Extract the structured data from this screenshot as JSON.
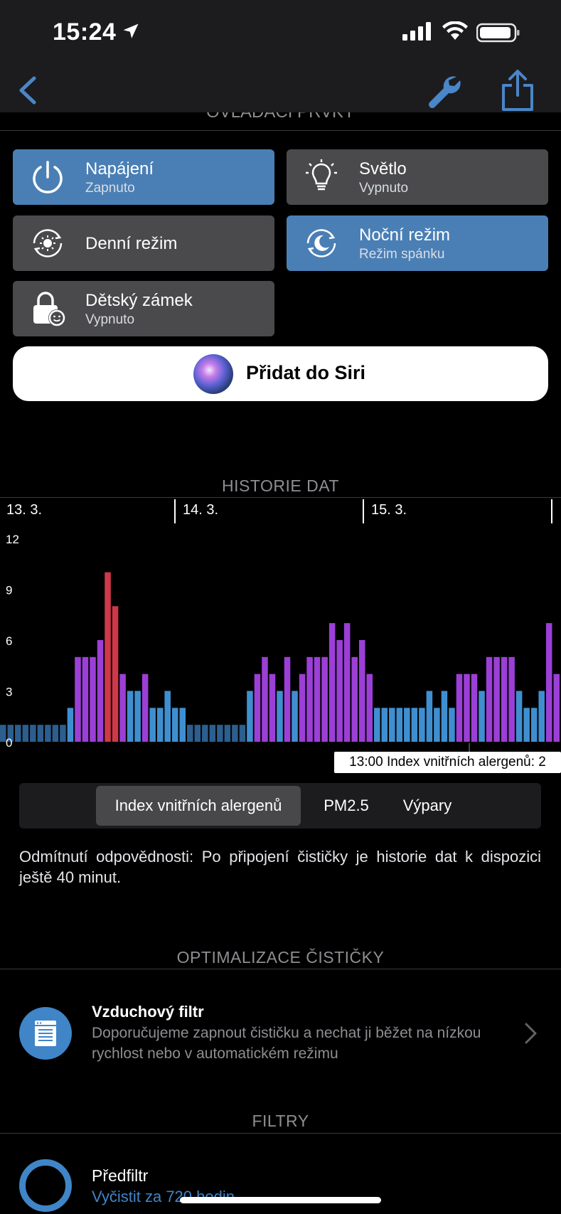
{
  "status_bar": {
    "time": "15:24"
  },
  "controls": {
    "section_title": "OVLÁDACÍ PRVKY",
    "items": [
      {
        "title": "Napájení",
        "subtitle": "Zapnuto",
        "icon": "power-icon",
        "active": true
      },
      {
        "title": "Světlo",
        "subtitle": "Vypnuto",
        "icon": "lightbulb-icon",
        "active": false
      },
      {
        "title": "Denní režim",
        "subtitle": "",
        "icon": "sun-icon",
        "active": false
      },
      {
        "title": "Noční režim",
        "subtitle": "Režim spánku",
        "icon": "moon-icon",
        "active": true
      },
      {
        "title": "Dětský zámek",
        "subtitle": "Vypnuto",
        "icon": "child-lock-icon",
        "active": false
      }
    ],
    "siri_label": "Přidat do Siri"
  },
  "history": {
    "section_title": "HISTORIE DAT",
    "days": [
      "13. 3.",
      "14. 3.",
      "15. 3."
    ],
    "tooltip": "13:00 Index vnitřních alergenů: 2",
    "tabs": [
      "Index vnitřních alergenů",
      "PM2.5",
      "Výpary"
    ],
    "active_tab": 0,
    "disclaimer": "Odmítnutí odpovědnosti: Po připojení čističky je historie dat k dispozici ještě 40 minut."
  },
  "chart_data": {
    "type": "bar",
    "title": "Index vnitřních alergenů",
    "ylim": [
      0,
      12
    ],
    "yticks": [
      0,
      3,
      6,
      9,
      12
    ],
    "xlabels": [
      "13. 3.",
      "14. 3.",
      "15. 3."
    ],
    "values": [
      1,
      1,
      1,
      1,
      1,
      1,
      1,
      1,
      1,
      2,
      5,
      5,
      5,
      6,
      10,
      8,
      4,
      3,
      3,
      4,
      2,
      2,
      3,
      2,
      2,
      1,
      1,
      1,
      1,
      1,
      1,
      1,
      1,
      3,
      4,
      5,
      4,
      3,
      5,
      3,
      4,
      5,
      5,
      5,
      7,
      6,
      7,
      5,
      6,
      4,
      2,
      2,
      2,
      2,
      2,
      2,
      2,
      3,
      2,
      3,
      2,
      4,
      4,
      4,
      3,
      5,
      5,
      5,
      5,
      3,
      2,
      2,
      3,
      7,
      4
    ],
    "colors": {
      "low": "#3f8fd0",
      "mid": "#9b3fd6",
      "high": "#d0384a",
      "min": "#2c5e8e"
    }
  },
  "optimization": {
    "section_title": "OPTIMALIZACE ČISTIČKY",
    "item_title": "Vzduchový filtr",
    "item_desc": "Doporučujeme zapnout čističku a nechat ji běžet na nízkou rychlost nebo v automatickém režimu"
  },
  "filters": {
    "section_title": "FILTRY",
    "prefilter_title": "Předfiltr",
    "prefilter_status": "Vyčistit za 720 hodin"
  }
}
